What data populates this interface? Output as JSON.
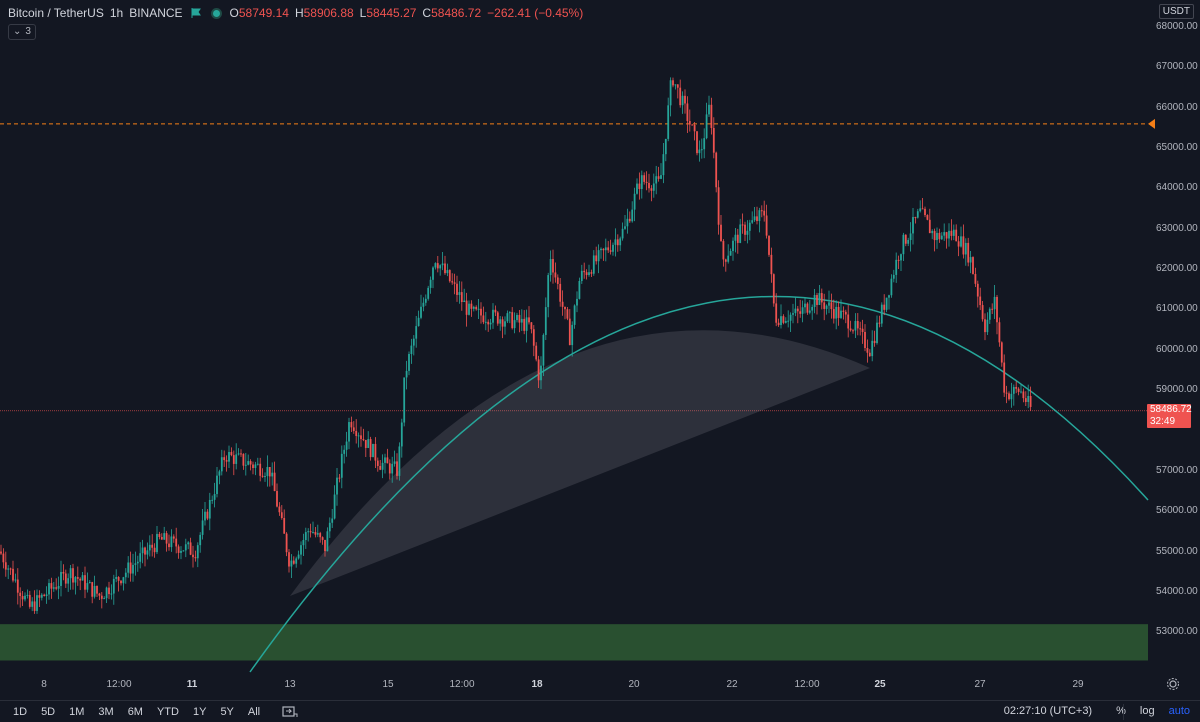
{
  "legend": {
    "symbol": "Bitcoin / TetherUS",
    "interval": "1h",
    "exchange": "BINANCE",
    "open_label": "O",
    "open": "58749.14",
    "high_label": "H",
    "high": "58906.88",
    "low_label": "L",
    "low": "58445.27",
    "close_label": "C",
    "close": "58486.72",
    "change": "−262.41 (−0.45%)",
    "flag_color": "#26a69a",
    "value_color": "#ef5350"
  },
  "indicator_count": "3",
  "currency": "USDT",
  "current_price": {
    "value": "58486.72",
    "countdown": "32:49",
    "color": "#ef5350"
  },
  "colors": {
    "up": "#26a69a",
    "down": "#ef5350",
    "zone": "#2e5a32",
    "arc": "#26a69a",
    "alert_line": "#f57f17",
    "background": "#131722"
  },
  "chart_data": {
    "type": "candlestick",
    "symbol": "BTCUSDT",
    "price_ticks": [
      "68000.00",
      "67000.00",
      "66000.00",
      "65000.00",
      "64000.00",
      "63000.00",
      "62000.00",
      "61000.00",
      "60000.00",
      "59000.00",
      "57000.00",
      "56000.00",
      "55000.00",
      "54000.00",
      "53000.00"
    ],
    "time_ticks": [
      {
        "label": "8",
        "bold": false
      },
      {
        "label": "12:00",
        "bold": false
      },
      {
        "label": "11",
        "bold": true
      },
      {
        "label": "13",
        "bold": false
      },
      {
        "label": "15",
        "bold": false
      },
      {
        "label": "12:00",
        "bold": false
      },
      {
        "label": "18",
        "bold": true
      },
      {
        "label": "20",
        "bold": false
      },
      {
        "label": "22",
        "bold": false
      },
      {
        "label": "12:00",
        "bold": false
      },
      {
        "label": "25",
        "bold": true
      },
      {
        "label": "27",
        "bold": false
      },
      {
        "label": "29",
        "bold": false
      }
    ],
    "key_prices": [
      {
        "x": 0,
        "p": 55000
      },
      {
        "x": 30,
        "p": 53600
      },
      {
        "x": 70,
        "p": 54500
      },
      {
        "x": 100,
        "p": 53900
      },
      {
        "x": 160,
        "p": 55300
      },
      {
        "x": 195,
        "p": 55000
      },
      {
        "x": 225,
        "p": 57400
      },
      {
        "x": 270,
        "p": 57000
      },
      {
        "x": 290,
        "p": 54700
      },
      {
        "x": 310,
        "p": 55600
      },
      {
        "x": 325,
        "p": 55100
      },
      {
        "x": 350,
        "p": 58300
      },
      {
        "x": 380,
        "p": 57200
      },
      {
        "x": 398,
        "p": 57000
      },
      {
        "x": 405,
        "p": 59400
      },
      {
        "x": 435,
        "p": 62300
      },
      {
        "x": 470,
        "p": 60900
      },
      {
        "x": 500,
        "p": 60800
      },
      {
        "x": 530,
        "p": 60600
      },
      {
        "x": 540,
        "p": 59200
      },
      {
        "x": 550,
        "p": 62400
      },
      {
        "x": 570,
        "p": 60300
      },
      {
        "x": 580,
        "p": 61800
      },
      {
        "x": 600,
        "p": 62300
      },
      {
        "x": 625,
        "p": 63000
      },
      {
        "x": 640,
        "p": 64200
      },
      {
        "x": 660,
        "p": 64100
      },
      {
        "x": 672,
        "p": 66800
      },
      {
        "x": 690,
        "p": 65600
      },
      {
        "x": 700,
        "p": 64800
      },
      {
        "x": 710,
        "p": 66100
      },
      {
        "x": 722,
        "p": 62200
      },
      {
        "x": 740,
        "p": 62900
      },
      {
        "x": 765,
        "p": 63400
      },
      {
        "x": 775,
        "p": 60800
      },
      {
        "x": 800,
        "p": 60900
      },
      {
        "x": 815,
        "p": 61300
      },
      {
        "x": 850,
        "p": 60700
      },
      {
        "x": 870,
        "p": 60000
      },
      {
        "x": 885,
        "p": 61200
      },
      {
        "x": 900,
        "p": 62500
      },
      {
        "x": 920,
        "p": 63400
      },
      {
        "x": 935,
        "p": 62800
      },
      {
        "x": 955,
        "p": 62900
      },
      {
        "x": 970,
        "p": 62300
      },
      {
        "x": 985,
        "p": 60600
      },
      {
        "x": 995,
        "p": 61200
      },
      {
        "x": 1005,
        "p": 58900
      },
      {
        "x": 1020,
        "p": 59000
      },
      {
        "x": 1032,
        "p": 58486
      }
    ],
    "alert_line_price": 65600,
    "support_zone": [
      52300,
      53200
    ],
    "current_price": 58486.72
  }
}
